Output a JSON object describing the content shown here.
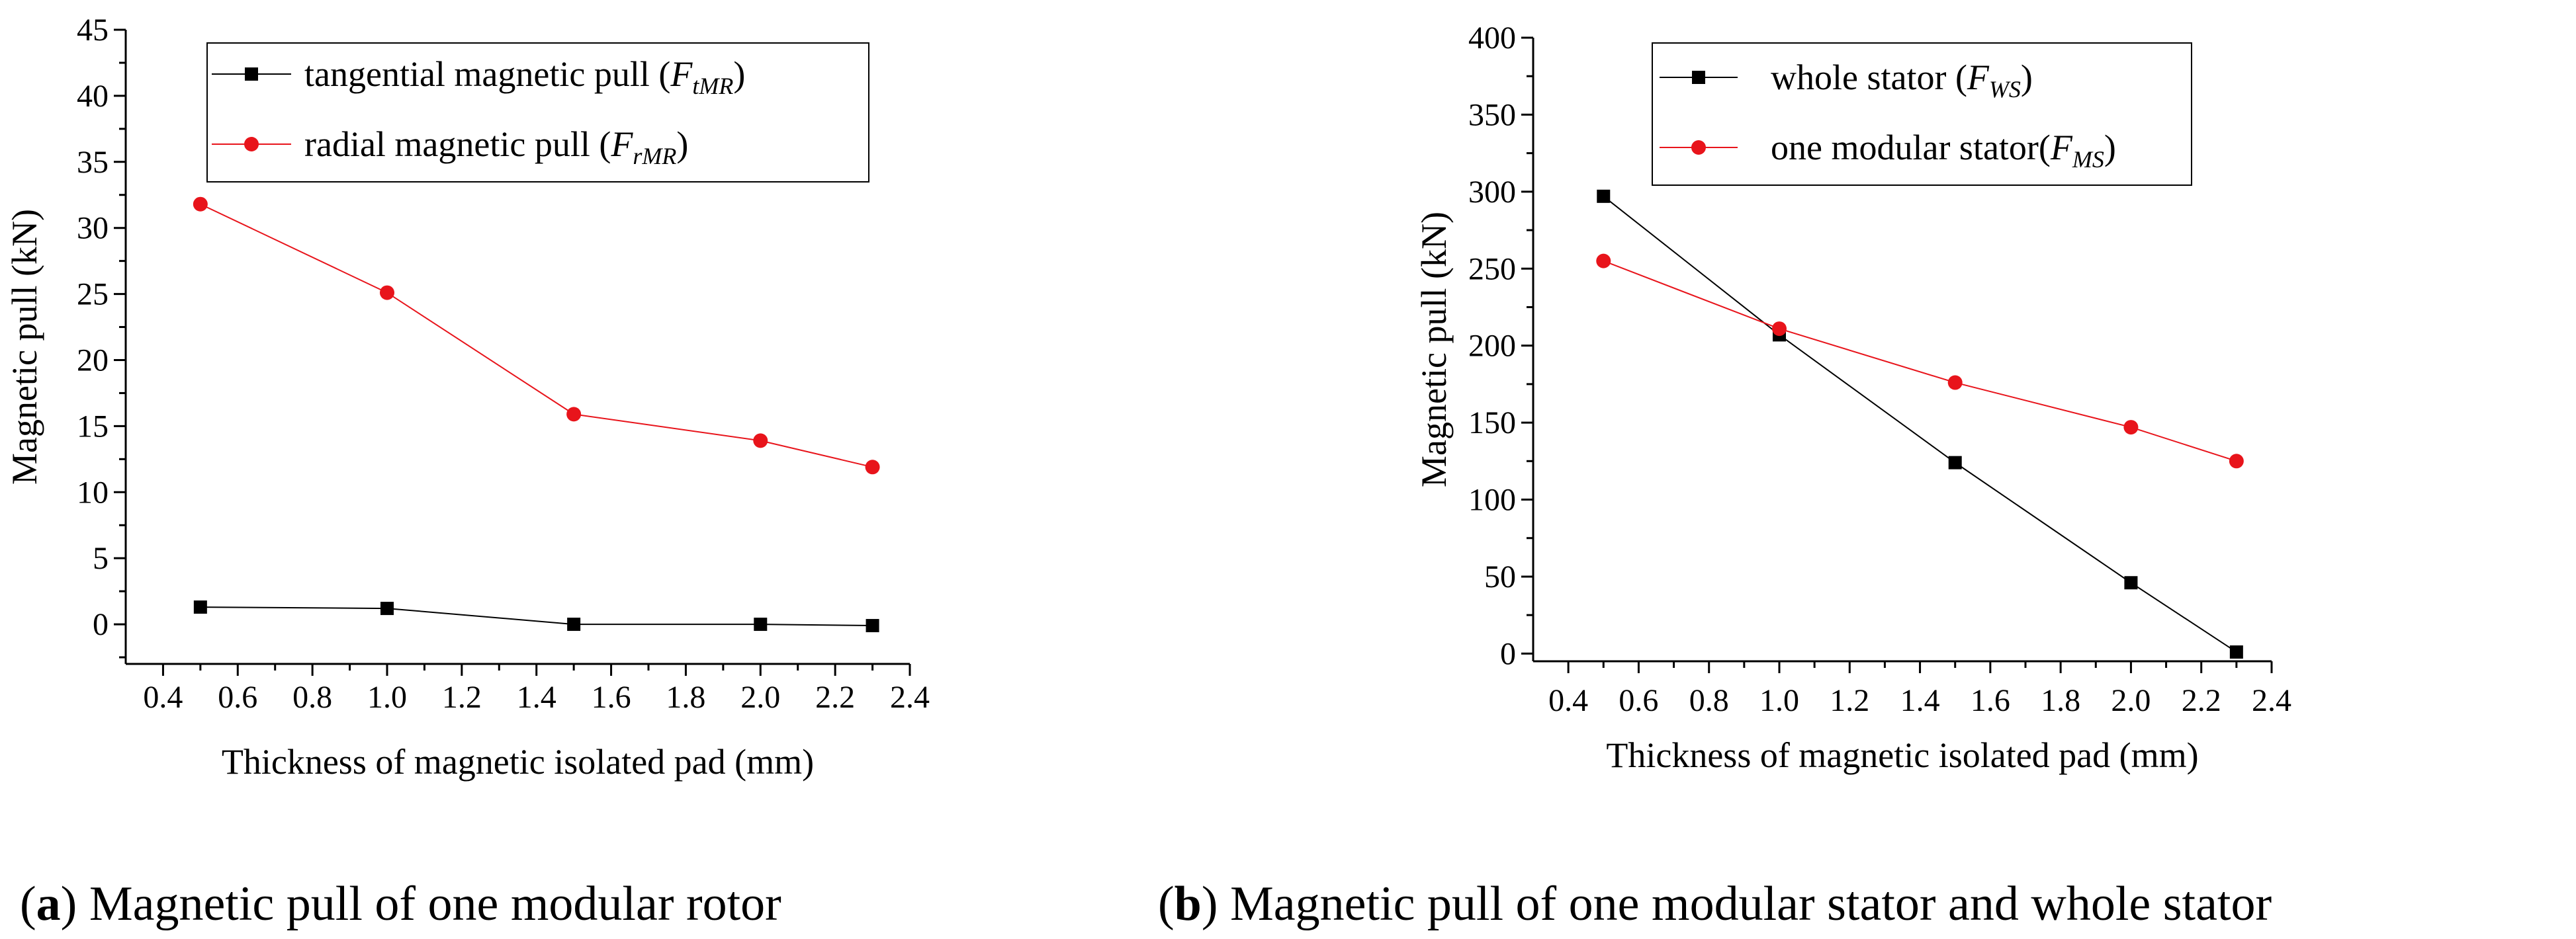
{
  "chart_data": [
    {
      "type": "line",
      "panel_label": "a",
      "caption": "Magnetic pull of one modular rotor",
      "title": "",
      "xlabel": "Thickness of magnetic isolated pad (mm)",
      "ylabel": "Magnetic pull (kN)",
      "xlim": [
        0.3,
        2.4
      ],
      "ylim": [
        -3,
        45
      ],
      "xticks": [
        0.4,
        0.6,
        0.8,
        1.0,
        1.2,
        1.4,
        1.6,
        1.8,
        2.0,
        2.2,
        2.4
      ],
      "xtick_labels": [
        "0.4",
        "0.6",
        "0.8",
        "1.0",
        "1.2",
        "1.4",
        "1.6",
        "1.8",
        "2.0",
        "2.2",
        "2.4"
      ],
      "yticks": [
        0,
        5,
        10,
        15,
        20,
        25,
        30,
        35,
        40,
        45
      ],
      "ytick_labels": [
        "0",
        "5",
        "10",
        "15",
        "20",
        "25",
        "30",
        "35",
        "40",
        "45"
      ],
      "legend_position": "top-center",
      "x": [
        0.5,
        1.0,
        1.5,
        2.0,
        2.3
      ],
      "series": [
        {
          "name": "tangential magnetic pull",
          "sym_base": "F",
          "sym_sub": "tMR",
          "open": "(",
          "close": ")",
          "color": "#000000",
          "marker": "square",
          "values": [
            1.3,
            1.2,
            0.0,
            0.0,
            -0.1
          ]
        },
        {
          "name": "radial magnetic pull",
          "sym_base": "F",
          "sym_sub": "rMR",
          "open": "(",
          "close": ")",
          "color": "#e8141b",
          "marker": "circle",
          "values": [
            31.8,
            25.1,
            15.9,
            13.9,
            11.9
          ]
        }
      ]
    },
    {
      "type": "line",
      "panel_label": "b",
      "caption": "Magnetic pull of one modular stator and whole stator",
      "title": "",
      "xlabel": "Thickness of magnetic isolated pad (mm)",
      "ylabel": "Magnetic pull (kN)",
      "xlim": [
        0.3,
        2.4
      ],
      "ylim": [
        -5,
        400
      ],
      "xticks": [
        0.4,
        0.6,
        0.8,
        1.0,
        1.2,
        1.4,
        1.6,
        1.8,
        2.0,
        2.2,
        2.4
      ],
      "xtick_labels": [
        "0.4",
        "0.6",
        "0.8",
        "1.0",
        "1.2",
        "1.4",
        "1.6",
        "1.8",
        "2.0",
        "2.2",
        "2.4"
      ],
      "yticks": [
        0,
        50,
        100,
        150,
        200,
        250,
        300,
        350,
        400
      ],
      "ytick_labels": [
        "0",
        "50",
        "100",
        "150",
        "200",
        "250",
        "300",
        "350",
        "400"
      ],
      "legend_position": "top-center",
      "x": [
        0.5,
        1.0,
        1.5,
        2.0,
        2.3
      ],
      "series": [
        {
          "name": "whole stator",
          "sym_base": "F",
          "sym_sub": "WS",
          "open": " (",
          "close": ")",
          "color": "#000000",
          "marker": "square",
          "values": [
            297,
            207,
            124,
            46,
            1
          ]
        },
        {
          "name": "one modular stator",
          "sym_base": "F",
          "sym_sub": "MS",
          "open": "(",
          "close": ")",
          "color": "#e8141b",
          "marker": "circle",
          "values": [
            255,
            211,
            176,
            147,
            125
          ]
        }
      ]
    }
  ]
}
